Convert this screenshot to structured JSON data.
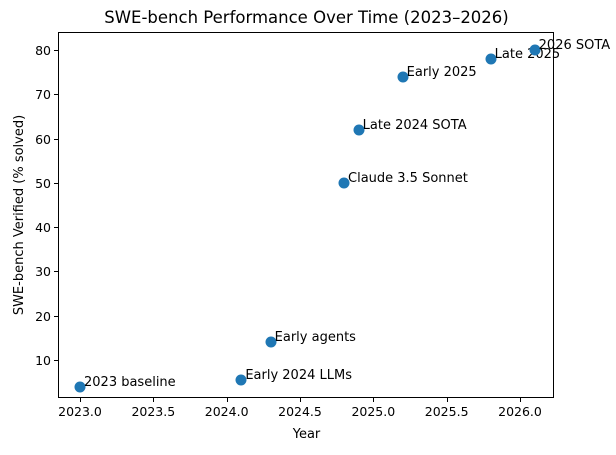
{
  "chart_data": {
    "type": "scatter",
    "title": "SWE-bench Performance Over Time (2023–2026)",
    "xlabel": "Year",
    "ylabel": "SWE-bench Verified (% solved)",
    "xlim": [
      2022.85,
      2026.24
    ],
    "ylim": [
      0.5,
      84
    ],
    "grid": false,
    "legend": "none",
    "marker_color": "#1f77b4",
    "text_color": "#000000",
    "background_color": "#ffffff",
    "x_ticks": {
      "values": [
        2023.0,
        2023.5,
        2024.0,
        2024.5,
        2025.0,
        2025.5,
        2026.0
      ],
      "labels": [
        "2023.0",
        "2023.5",
        "2024.0",
        "2024.5",
        "2025.0",
        "2025.5",
        "2026.0"
      ]
    },
    "y_ticks": {
      "values": [
        10,
        20,
        30,
        40,
        50,
        60,
        70,
        80
      ],
      "labels": [
        "10",
        "20",
        "30",
        "40",
        "50",
        "60",
        "70",
        "80"
      ]
    },
    "points": [
      {
        "label": "2023 baseline",
        "x": 2023.0,
        "y": 4
      },
      {
        "label": "Early 2024 LLMs",
        "x": 2024.1,
        "y": 5.5
      },
      {
        "label": "Early agents",
        "x": 2024.3,
        "y": 14
      },
      {
        "label": "Claude 3.5 Sonnet",
        "x": 2024.8,
        "y": 50
      },
      {
        "label": "Late 2024 SOTA",
        "x": 2024.9,
        "y": 62
      },
      {
        "label": "Early 2025",
        "x": 2025.2,
        "y": 74
      },
      {
        "label": "Late 2025",
        "x": 2025.8,
        "y": 78
      },
      {
        "label": "2026 SOTA",
        "x": 2026.1,
        "y": 80
      }
    ]
  }
}
